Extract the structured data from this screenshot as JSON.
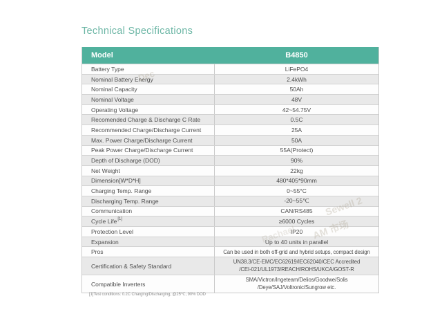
{
  "page": {
    "title": "Technical Specifications"
  },
  "colors": {
    "header_teal": "#50b19d",
    "title_teal": "#6cb6a5",
    "alt_row_gray": "#e9e9e9",
    "border_gray": "#c9c9c9"
  },
  "table": {
    "header": {
      "model_label": "Model",
      "model_value": "B4850"
    },
    "rows": [
      {
        "label": "Battery Type",
        "value": "LiFePO4"
      },
      {
        "label": "Nominal Battery Energy",
        "value": "2.4kWh"
      },
      {
        "label": "Nominal Capacity",
        "value": "50Ah"
      },
      {
        "label": "Nominal Voltage",
        "value": "48V"
      },
      {
        "label": "Operating Voltage",
        "value": "42~54.75V"
      },
      {
        "label": "Recomended Charge & Discharge C Rate",
        "value": "0.5C"
      },
      {
        "label": "Recommended Charge/Discharge Current",
        "value": "25A"
      },
      {
        "label": "Max. Power Charge/Discharge Current",
        "value": "50A"
      },
      {
        "label": "Peak Power Charge/Discharge Current",
        "value": "55A(Protect)"
      },
      {
        "label": "Depth of Discharge (DOD)",
        "value": "90%"
      },
      {
        "label": "Net Weight",
        "value": "22kg"
      },
      {
        "label": "Dimension[W*D*H]",
        "value": "480*405*90mm"
      },
      {
        "label": "Charging Temp. Range",
        "value": "0~55°C"
      },
      {
        "label": "Discharging Temp. Range",
        "value": "-20~55℃"
      },
      {
        "label": "Communication",
        "value": "CAN/RS485"
      },
      {
        "label": "Cycle Life",
        "label_sup": "[1]",
        "value": "≥6000 Cycles"
      },
      {
        "label": "Protection Level",
        "value": "IP20"
      },
      {
        "label": "Expansion",
        "value": "Up to 40 units in parallel"
      },
      {
        "label": "Pros",
        "value": "Can be used in both off-grid and hybrid setups, compact design"
      },
      {
        "label": "Certification & Safety Standard",
        "value_lines": [
          "UN38.3/CE-EMC/EC62619/IEC62040/CEC Accredited",
          "/CEI-021/UL1973/REACH/ROHS/UKCA/GOST-R"
        ]
      },
      {
        "label": "Compatible Inverters",
        "value_lines": [
          "SMA/Victron/Ingeteam/Delios/Goodwe/Solis",
          "/Deye/SAJ/Voltronic/Sungrow etc."
        ]
      }
    ],
    "footnote": "[1]Test conditions: 0.2C Charging/Discharging, @25℃, 90% DOD"
  },
  "watermarks": [
    {
      "text": "Dec"
    },
    {
      "text": "Sewell 2"
    },
    {
      "text": "Rachael"
    },
    {
      "text": "AM 市场"
    }
  ]
}
